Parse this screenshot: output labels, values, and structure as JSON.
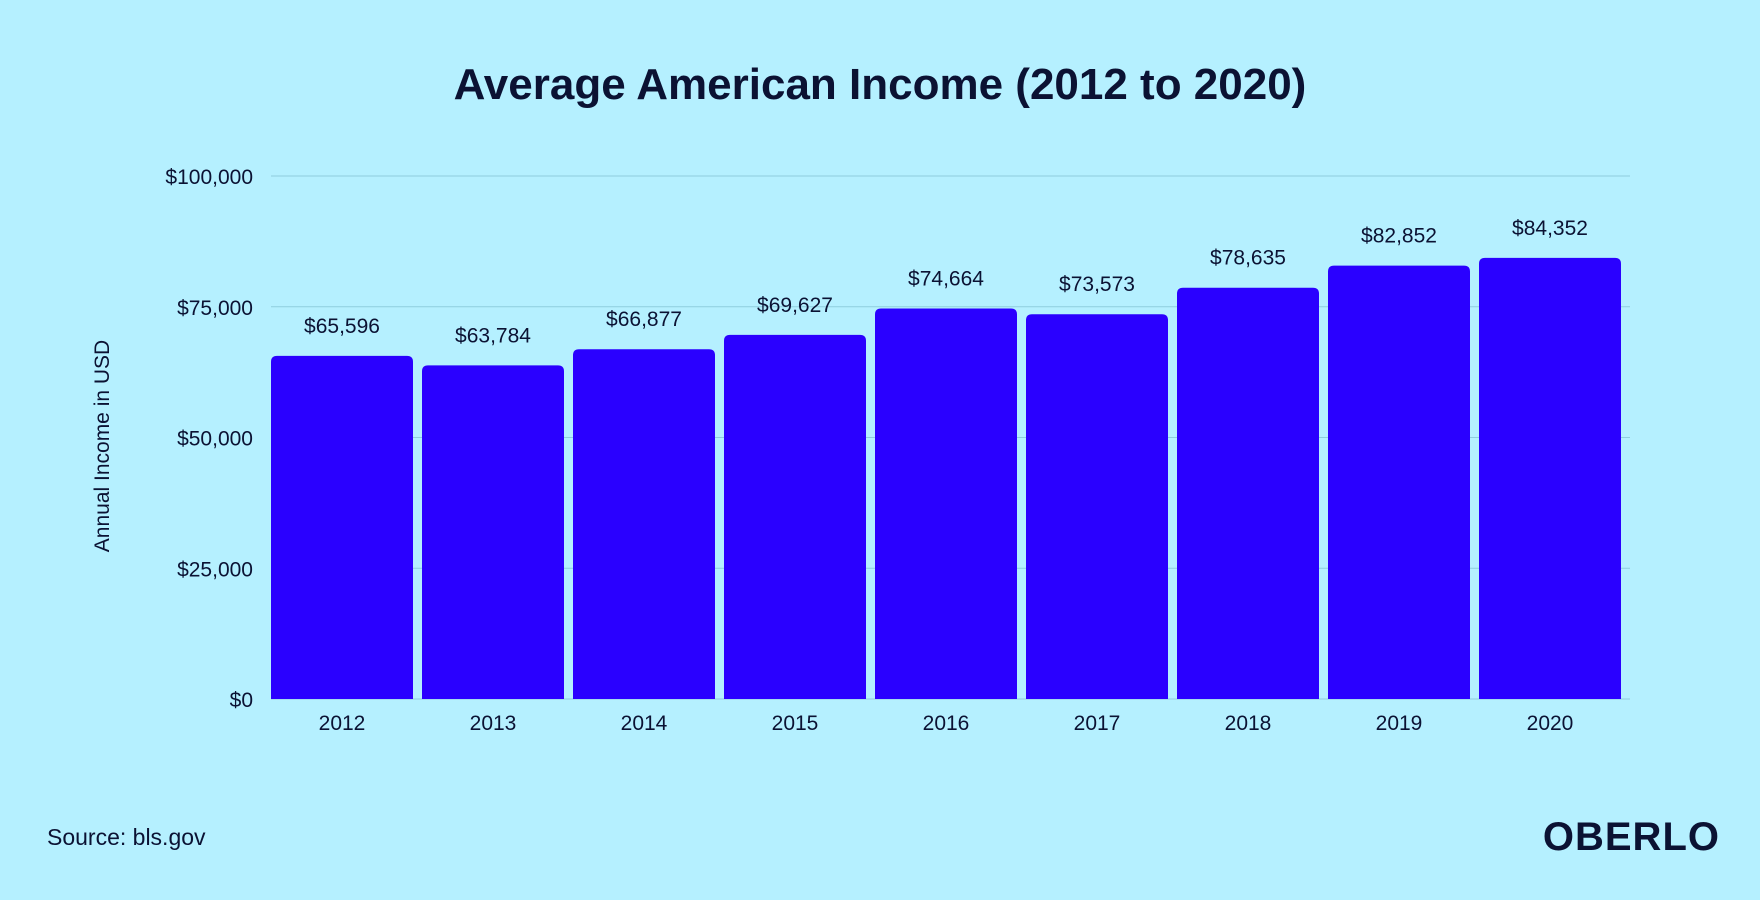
{
  "title": "Average American Income (2012 to 2020)",
  "source": "Source: bls.gov",
  "brand": "OBERLO",
  "colors": {
    "background": "#b5f0ff",
    "bar": "#2a00ff",
    "text": "#0b1233",
    "grid": "#8fcddd"
  },
  "chart_data": {
    "type": "bar",
    "title": "Average American Income (2012 to 2020)",
    "xlabel": "",
    "ylabel": "Annual Income in USD",
    "categories": [
      "2012",
      "2013",
      "2014",
      "2015",
      "2016",
      "2017",
      "2018",
      "2019",
      "2020"
    ],
    "values": [
      65596,
      63784,
      66877,
      69627,
      74664,
      73573,
      78635,
      82852,
      84352
    ],
    "value_labels": [
      "$65,596",
      "$63,784",
      "$66,877",
      "$69,627",
      "$74,664",
      "$73,573",
      "$78,635",
      "$82,852",
      "$84,352"
    ],
    "ylim": [
      0,
      100000
    ],
    "yticks": [
      0,
      25000,
      50000,
      75000,
      100000
    ],
    "ytick_labels": [
      "$0",
      "$25,000",
      "$50,000",
      "$75,000",
      "$100,000"
    ],
    "grid": true,
    "legend": "none"
  }
}
